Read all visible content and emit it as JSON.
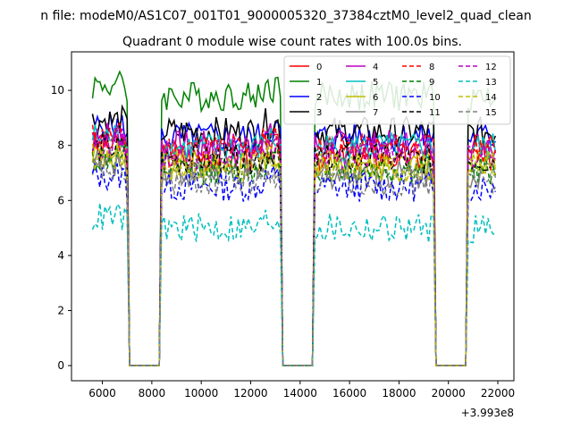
{
  "figure": {
    "suptitle": "n file: modeM0/AS1C07_001T01_9000005320_37384cztM0_level2_quad_clean",
    "title": "Quadrant 0 module wise count rates with 100.0s bins.",
    "x_offset_label": "+3.993e8"
  },
  "chart_data": {
    "type": "line",
    "title": "Quadrant 0 module wise count rates with 100.0s bins.",
    "xlabel": "",
    "ylabel": "",
    "x_offset": 399300000,
    "xlim": [
      4750,
      22650
    ],
    "ylim": [
      -0.55,
      11.4
    ],
    "xticks": [
      6000,
      8000,
      10000,
      12000,
      14000,
      16000,
      18000,
      20000,
      22000
    ],
    "yticks": [
      0,
      2,
      4,
      6,
      8,
      10
    ],
    "grid": false,
    "legend": {
      "location": "top-right",
      "columns": 4
    },
    "segments": [
      [
        5600,
        7000
      ],
      [
        8400,
        13200
      ],
      [
        14600,
        19400
      ],
      [
        20800,
        21900
      ]
    ],
    "gaps": [
      [
        7000,
        8400
      ],
      [
        13200,
        14600
      ],
      [
        19400,
        20800
      ]
    ],
    "series": [
      {
        "name": "0",
        "color": "#ff0000",
        "dash": "solid",
        "level": 7.6
      },
      {
        "name": "1",
        "color": "#008000",
        "dash": "solid",
        "level": 9.8
      },
      {
        "name": "2",
        "color": "#0000ff",
        "dash": "solid",
        "level": 8.3
      },
      {
        "name": "3",
        "color": "#000000",
        "dash": "solid",
        "level": 8.5
      },
      {
        "name": "4",
        "color": "#bf00bf",
        "dash": "solid",
        "level": 8.0
      },
      {
        "name": "5",
        "color": "#00bfbf",
        "dash": "solid",
        "level": 7.9
      },
      {
        "name": "6",
        "color": "#bfbf00",
        "dash": "solid",
        "level": 7.3
      },
      {
        "name": "7",
        "color": "#808080",
        "dash": "solid",
        "level": 7.0
      },
      {
        "name": "8",
        "color": "#ff0000",
        "dash": "dashed",
        "level": 7.9
      },
      {
        "name": "9",
        "color": "#008000",
        "dash": "dashed",
        "level": 7.1
      },
      {
        "name": "10",
        "color": "#0000ff",
        "dash": "dashed",
        "level": 6.5
      },
      {
        "name": "11",
        "color": "#000000",
        "dash": "dashed",
        "level": 7.5
      },
      {
        "name": "12",
        "color": "#bf00bf",
        "dash": "dashed",
        "level": 7.7
      },
      {
        "name": "13",
        "color": "#00bfbf",
        "dash": "dashed",
        "level": 5.0
      },
      {
        "name": "14",
        "color": "#bfbf00",
        "dash": "dashed",
        "level": 7.2
      },
      {
        "name": "15",
        "color": "#808080",
        "dash": "dashed",
        "level": 6.7
      }
    ]
  }
}
